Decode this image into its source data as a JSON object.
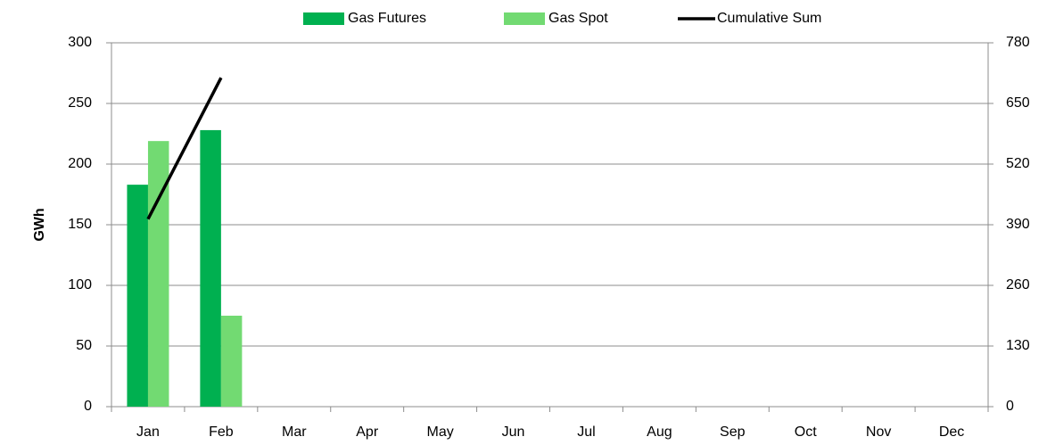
{
  "chart_data": {
    "type": "bar",
    "categories": [
      "Jan",
      "Feb",
      "Mar",
      "Apr",
      "May",
      "Jun",
      "Jul",
      "Aug",
      "Sep",
      "Oct",
      "Nov",
      "Dec"
    ],
    "y_label": "GWh",
    "series": [
      {
        "name": "Gas Futures",
        "color": "#00b050",
        "values": [
          183,
          228,
          null,
          null,
          null,
          null,
          null,
          null,
          null,
          null,
          null,
          null
        ]
      },
      {
        "name": "Gas Spot",
        "color": "#72da72",
        "values": [
          219,
          75,
          null,
          null,
          null,
          null,
          null,
          null,
          null,
          null,
          null,
          null
        ]
      },
      {
        "name": "Cumulative Sum",
        "color": "#000000",
        "type": "line",
        "axis": "y2",
        "values": [
          402,
          705,
          null,
          null,
          null,
          null,
          null,
          null,
          null,
          null,
          null,
          null
        ]
      }
    ],
    "ylim": [
      0,
      300
    ],
    "yticks": [
      0,
      50,
      100,
      150,
      200,
      250,
      300
    ],
    "y2lim": [
      0,
      780
    ],
    "y2ticks": [
      0,
      130,
      260,
      390,
      520,
      650,
      780
    ],
    "grid": true,
    "legend": "top"
  }
}
